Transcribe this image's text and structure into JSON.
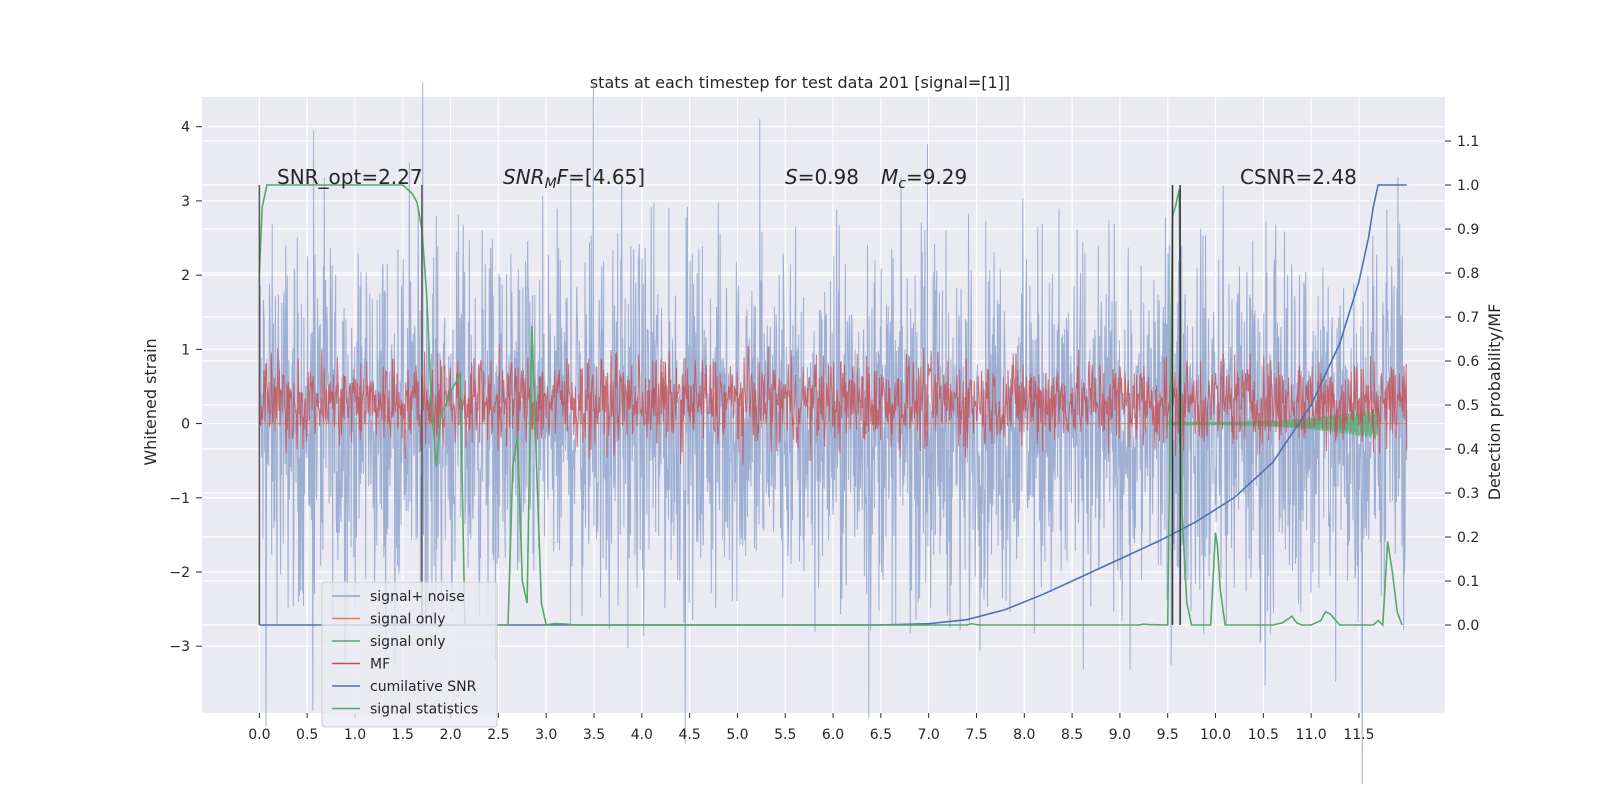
{
  "chart_data": {
    "type": "line",
    "title": "stats at each timestep for test data 201 [signal=[1]]",
    "ylabel": "Whitened strain",
    "y2label": "Detection probability/MF",
    "xlim": [
      -0.6,
      12.4
    ],
    "ylim": [
      -3.9,
      4.4
    ],
    "y2lim": [
      -0.2,
      1.2
    ],
    "xticks": [
      "0.0",
      "0.5",
      "1.0",
      "1.5",
      "2.0",
      "2.5",
      "3.0",
      "3.5",
      "4.0",
      "4.5",
      "5.0",
      "5.5",
      "6.0",
      "6.5",
      "7.0",
      "7.5",
      "8.0",
      "8.5",
      "9.0",
      "9.5",
      "10.0",
      "10.5",
      "11.0",
      "11.5"
    ],
    "yticks": [
      -3,
      -2,
      -1,
      0,
      1,
      2,
      3,
      4
    ],
    "y2ticks": [
      "0.0",
      "0.1",
      "0.2",
      "0.3",
      "0.4",
      "0.5",
      "0.6",
      "0.7",
      "0.8",
      "0.9",
      "1.0",
      "1.1"
    ],
    "grid": true,
    "legend_location": "lower left",
    "annotations": [
      {
        "text": "SNR_opt=2.27"
      },
      {
        "main": "SNR",
        "sub": "M",
        "rest": "F=[4.65]"
      },
      {
        "text": "S=0.98"
      },
      {
        "main": "M",
        "sub": "c",
        "rest": "=9.29"
      },
      {
        "text": "CSNR=2.48"
      }
    ],
    "vlines_gray": [
      0.0,
      1.7
    ],
    "vlines_dark": [
      9.55,
      9.63
    ],
    "series": [
      {
        "name": "signal+ noise",
        "color": "#8fa3cc",
        "axis": "left",
        "kind": "noise",
        "center": 0.0,
        "amplitude": 1.2,
        "x_range": [
          0.0,
          12.0
        ]
      },
      {
        "name": "signal only",
        "color": "#dd8452",
        "axis": "left",
        "x": [
          0.0,
          12.0
        ],
        "y": [
          0.0,
          0.0
        ]
      },
      {
        "name": "signal only",
        "color": "#55a868",
        "axis": "left",
        "kind": "chirp",
        "x_range": [
          9.5,
          11.7
        ]
      },
      {
        "name": "MF",
        "color": "#c44e52",
        "axis": "left",
        "kind": "noise",
        "center": 0.3,
        "amplitude": 0.3,
        "x_range": [
          0.0,
          12.0
        ]
      },
      {
        "name": "cumilative SNR",
        "color": "#4c72b0",
        "axis": "right",
        "x": [
          0.0,
          6.5,
          7.0,
          7.4,
          7.8,
          8.2,
          8.6,
          9.0,
          9.4,
          9.8,
          10.2,
          10.6,
          11.0,
          11.3,
          11.5,
          11.6,
          11.65,
          11.7,
          12.0
        ],
        "y": [
          0.0,
          0.0,
          0.003,
          0.012,
          0.035,
          0.07,
          0.11,
          0.15,
          0.19,
          0.235,
          0.29,
          0.37,
          0.5,
          0.64,
          0.78,
          0.88,
          0.95,
          1.0,
          1.0
        ]
      },
      {
        "name": "signal statistics",
        "color": "#55a868",
        "axis": "right",
        "x": [
          0.0,
          0.03,
          0.08,
          0.15,
          0.3,
          1.5,
          1.6,
          1.65,
          1.7,
          1.75,
          1.8,
          1.85,
          1.9,
          1.95,
          2.0,
          2.05,
          2.1,
          2.15,
          2.2,
          2.3,
          2.35,
          2.4,
          2.5,
          2.6,
          2.65,
          2.7,
          2.75,
          2.8,
          2.85,
          2.9,
          2.95,
          3.0,
          3.05,
          3.1,
          3.2,
          3.3,
          7.4,
          7.45,
          7.5,
          7.55,
          9.2,
          9.25,
          9.3,
          9.5,
          9.55,
          9.58,
          9.62,
          9.65,
          9.7,
          9.75,
          9.8,
          9.85,
          9.9,
          9.95,
          10.0,
          10.02,
          10.05,
          10.1,
          10.6,
          10.7,
          10.8,
          10.85,
          10.9,
          11.0,
          11.1,
          11.15,
          11.2,
          11.3,
          11.4,
          11.5,
          11.6,
          11.65,
          11.7,
          11.75,
          11.8,
          11.85,
          11.9,
          11.95
        ],
        "y": [
          0.8,
          0.95,
          1.0,
          1.0,
          1.0,
          1.0,
          0.98,
          0.96,
          0.9,
          0.75,
          0.5,
          0.36,
          0.48,
          0.5,
          0.53,
          0.55,
          0.57,
          0.0,
          0.0,
          0.0,
          0.0,
          0.0,
          0.0,
          0.0,
          0.36,
          0.43,
          0.1,
          0.05,
          0.68,
          0.35,
          0.05,
          0.0,
          0.002,
          0.003,
          0.002,
          0.0,
          0.0,
          0.003,
          0.001,
          0.0,
          0.0,
          0.002,
          0.001,
          0.0,
          0.93,
          0.95,
          0.99,
          0.25,
          0.05,
          0.0,
          0.0,
          0.0,
          0.0,
          0.0,
          0.21,
          0.18,
          0.08,
          0.0,
          0.0,
          0.005,
          0.02,
          0.005,
          0.0,
          0.0,
          0.01,
          0.03,
          0.025,
          0.0,
          0.0,
          0.0,
          0.0,
          0.0,
          0.01,
          0.0,
          0.19,
          0.12,
          0.03,
          0.0
        ]
      }
    ]
  }
}
